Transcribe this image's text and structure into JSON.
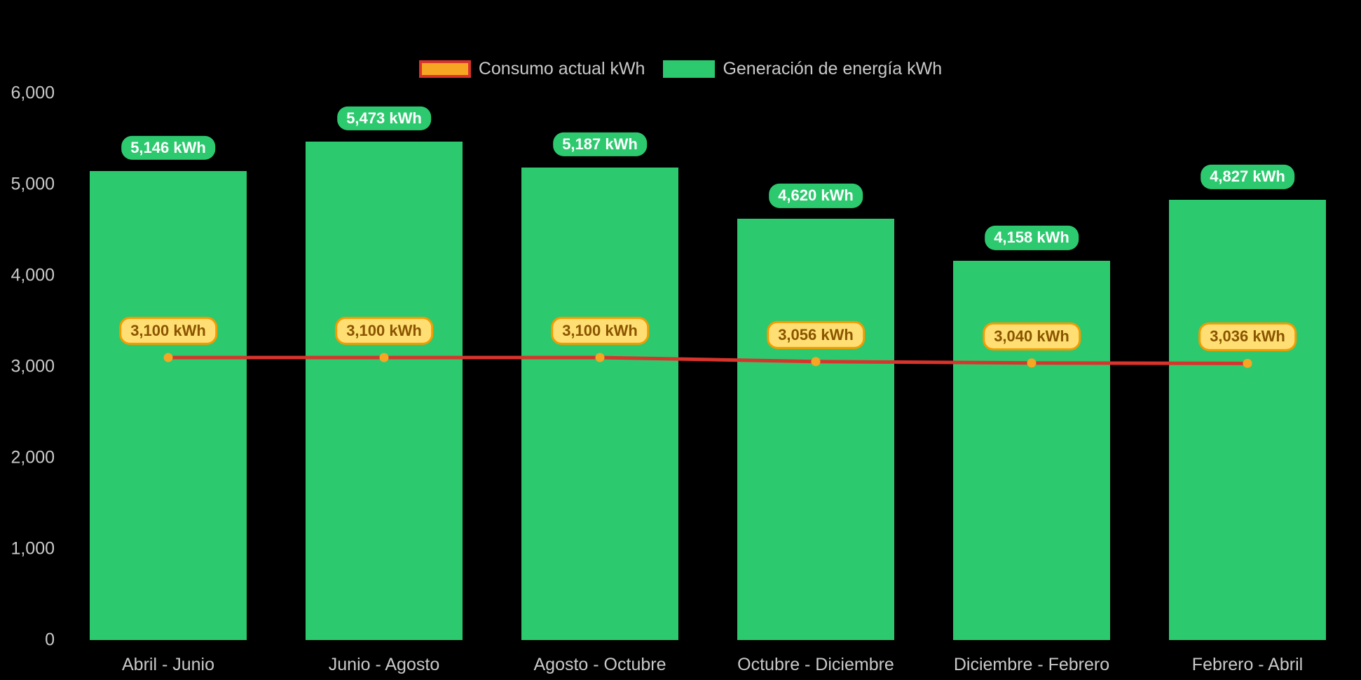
{
  "chart_data": {
    "type": "bar",
    "title": "",
    "xlabel": "",
    "ylabel": "",
    "background": "#000000",
    "grid": false,
    "legend_position": "top",
    "ylim": [
      0,
      6000
    ],
    "categories": [
      "Abril - Junio",
      "Junio - Agosto",
      "Agosto - Octubre",
      "Octubre - Diciembre",
      "Diciembre - Febrero",
      "Febrero - Abril"
    ],
    "y_ticks": [
      "0",
      "1,000",
      "2,000",
      "3,000",
      "4,000",
      "5,000",
      "6,000"
    ],
    "y_tick_values": [
      0,
      1000,
      2000,
      3000,
      4000,
      5000,
      6000
    ],
    "series": [
      {
        "name": "Generación de energía kWh",
        "type": "bar",
        "color": "#2dc96f",
        "label_text_color": "#ffffff",
        "values": [
          5146,
          5473,
          5187,
          4620,
          4158,
          4827
        ],
        "labels": [
          "5,146 kWh",
          "5,473 kWh",
          "5,187 kWh",
          "4,620 kWh",
          "4,158 kWh",
          "4,827 kWh"
        ]
      },
      {
        "name": "Consumo actual kWh",
        "type": "line",
        "color": "#d8342c",
        "point_color": "#f6a623",
        "label_bg": "#ffdf73",
        "label_border": "#f59b00",
        "label_text_color": "#8a5400",
        "values": [
          3100,
          3100,
          3100,
          3056,
          3040,
          3036
        ],
        "labels": [
          "3,100 kWh",
          "3,100 kWh",
          "3,100 kWh",
          "3,056 kWh",
          "3,040 kWh",
          "3,036 kWh"
        ]
      }
    ],
    "axis_text_color": "#c9c9c9"
  }
}
